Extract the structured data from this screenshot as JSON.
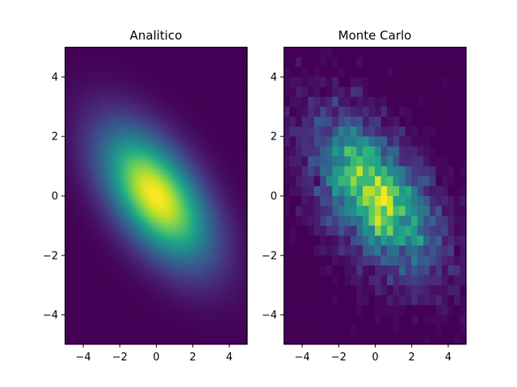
{
  "chart_data": [
    {
      "type": "heatmap",
      "title": "Analitico",
      "xlabel": "",
      "ylabel": "",
      "xlim": [
        -5,
        5
      ],
      "ylim": [
        -5,
        5
      ],
      "xticks": [
        "−4",
        "−2",
        "0",
        "2",
        "4"
      ],
      "yticks": [
        "4",
        "2",
        "0",
        "−2",
        "−4"
      ],
      "grid": false,
      "colormap": "viridis",
      "distribution": {
        "kind": "bivariate-gaussian",
        "mean": [
          0,
          0
        ],
        "std_x": 2.0,
        "std_y": 1.5,
        "correlation": -0.55
      },
      "bins": 100
    },
    {
      "type": "heatmap",
      "title": "Monte Carlo",
      "xlabel": "",
      "ylabel": "",
      "xlim": [
        -5,
        5
      ],
      "ylim": [
        -5,
        5
      ],
      "xticks": [
        "−4",
        "−2",
        "0",
        "2",
        "4"
      ],
      "yticks": [
        "4",
        "2",
        "0",
        "−2",
        "−4"
      ],
      "grid": false,
      "colormap": "viridis",
      "distribution": {
        "kind": "bivariate-gaussian-sampled-histogram",
        "mean": [
          0,
          0
        ],
        "std_x": 2.0,
        "std_y": 1.5,
        "correlation": -0.55
      },
      "bins": 30
    }
  ]
}
